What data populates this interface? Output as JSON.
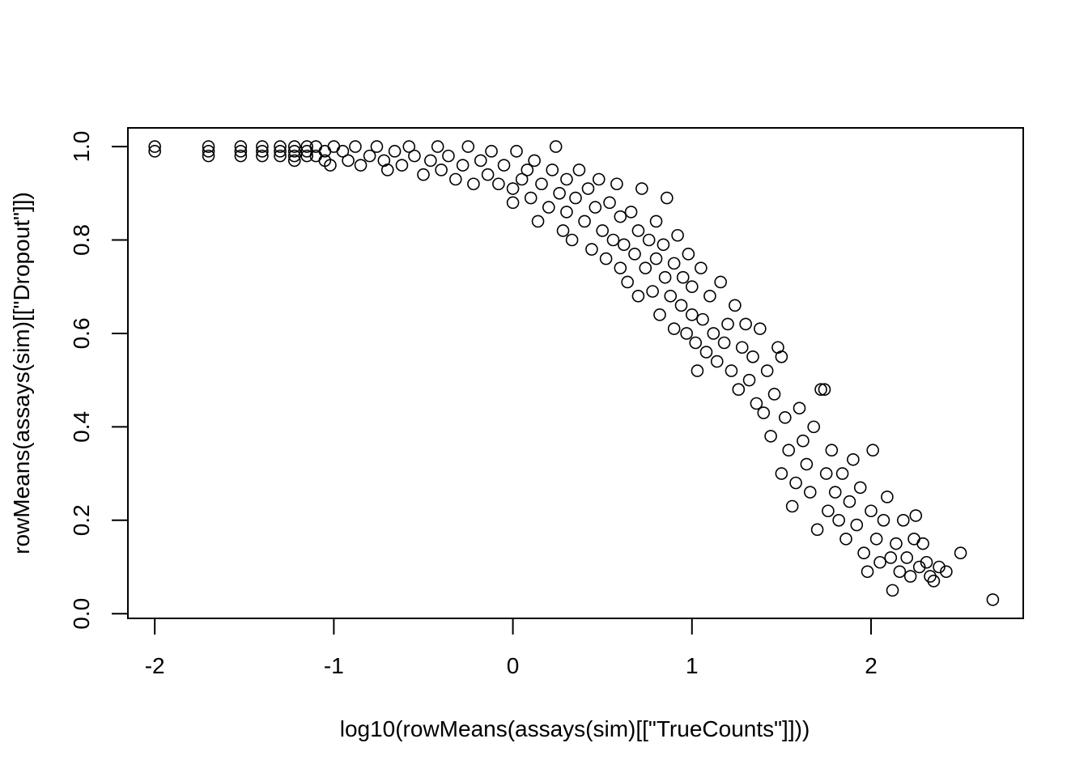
{
  "chart_data": {
    "type": "scatter",
    "title": "",
    "xlabel": "log10(rowMeans(assays(sim)[[\"TrueCounts\"]]))",
    "ylabel": "rowMeans(assays(sim)[[\"Dropout\"]])",
    "xlim": [
      -2.15,
      2.85
    ],
    "ylim": [
      -0.01,
      1.04
    ],
    "x_ticks": [
      -2,
      -1,
      0,
      1,
      2
    ],
    "x_tick_labels": [
      "-2",
      "-1",
      "0",
      "1",
      "2"
    ],
    "y_ticks": [
      0.0,
      0.2,
      0.4,
      0.6,
      0.8,
      1.0
    ],
    "y_tick_labels": [
      "0.0",
      "0.2",
      "0.4",
      "0.6",
      "0.8",
      "1.0"
    ],
    "grid": false,
    "marker": "open-circle",
    "marker_color": "#000000",
    "points": [
      [
        -2.0,
        1.0
      ],
      [
        -2.0,
        0.99
      ],
      [
        -1.7,
        1.0
      ],
      [
        -1.7,
        0.99
      ],
      [
        -1.7,
        0.98
      ],
      [
        -1.52,
        1.0
      ],
      [
        -1.52,
        0.99
      ],
      [
        -1.52,
        0.98
      ],
      [
        -1.4,
        1.0
      ],
      [
        -1.4,
        0.99
      ],
      [
        -1.4,
        0.98
      ],
      [
        -1.3,
        1.0
      ],
      [
        -1.3,
        0.99
      ],
      [
        -1.3,
        0.98
      ],
      [
        -1.22,
        1.0
      ],
      [
        -1.22,
        0.99
      ],
      [
        -1.22,
        0.98
      ],
      [
        -1.22,
        0.97
      ],
      [
        -1.15,
        1.0
      ],
      [
        -1.15,
        0.99
      ],
      [
        -1.15,
        0.98
      ],
      [
        -1.1,
        1.0
      ],
      [
        -1.1,
        0.98
      ],
      [
        -1.05,
        0.99
      ],
      [
        -1.05,
        0.97
      ],
      [
        -1.02,
        0.96
      ],
      [
        -1.0,
        1.0
      ],
      [
        -0.95,
        0.99
      ],
      [
        -0.92,
        0.97
      ],
      [
        -0.88,
        1.0
      ],
      [
        -0.85,
        0.96
      ],
      [
        -0.8,
        0.98
      ],
      [
        -0.76,
        1.0
      ],
      [
        -0.72,
        0.97
      ],
      [
        -0.7,
        0.95
      ],
      [
        -0.66,
        0.99
      ],
      [
        -0.62,
        0.96
      ],
      [
        -0.58,
        1.0
      ],
      [
        -0.55,
        0.98
      ],
      [
        -0.5,
        0.94
      ],
      [
        -0.46,
        0.97
      ],
      [
        -0.42,
        1.0
      ],
      [
        -0.4,
        0.95
      ],
      [
        -0.36,
        0.98
      ],
      [
        -0.32,
        0.93
      ],
      [
        -0.28,
        0.96
      ],
      [
        -0.25,
        1.0
      ],
      [
        -0.22,
        0.92
      ],
      [
        -0.18,
        0.97
      ],
      [
        -0.14,
        0.94
      ],
      [
        -0.12,
        0.99
      ],
      [
        -0.08,
        0.92
      ],
      [
        -0.05,
        0.96
      ],
      [
        0.0,
        0.91
      ],
      [
        0.0,
        0.88
      ],
      [
        0.02,
        0.99
      ],
      [
        0.05,
        0.93
      ],
      [
        0.08,
        0.95
      ],
      [
        0.1,
        0.89
      ],
      [
        0.12,
        0.97
      ],
      [
        0.14,
        0.84
      ],
      [
        0.16,
        0.92
      ],
      [
        0.2,
        0.87
      ],
      [
        0.22,
        0.95
      ],
      [
        0.24,
        1.0
      ],
      [
        0.26,
        0.9
      ],
      [
        0.28,
        0.82
      ],
      [
        0.3,
        0.93
      ],
      [
        0.3,
        0.86
      ],
      [
        0.33,
        0.8
      ],
      [
        0.35,
        0.89
      ],
      [
        0.37,
        0.95
      ],
      [
        0.4,
        0.84
      ],
      [
        0.42,
        0.91
      ],
      [
        0.44,
        0.78
      ],
      [
        0.46,
        0.87
      ],
      [
        0.48,
        0.93
      ],
      [
        0.5,
        0.82
      ],
      [
        0.52,
        0.76
      ],
      [
        0.54,
        0.88
      ],
      [
        0.56,
        0.8
      ],
      [
        0.58,
        0.92
      ],
      [
        0.6,
        0.74
      ],
      [
        0.6,
        0.85
      ],
      [
        0.62,
        0.79
      ],
      [
        0.64,
        0.71
      ],
      [
        0.66,
        0.86
      ],
      [
        0.68,
        0.77
      ],
      [
        0.7,
        0.82
      ],
      [
        0.7,
        0.68
      ],
      [
        0.72,
        0.91
      ],
      [
        0.74,
        0.74
      ],
      [
        0.76,
        0.8
      ],
      [
        0.78,
        0.69
      ],
      [
        0.8,
        0.84
      ],
      [
        0.8,
        0.76
      ],
      [
        0.82,
        0.64
      ],
      [
        0.84,
        0.79
      ],
      [
        0.85,
        0.72
      ],
      [
        0.86,
        0.89
      ],
      [
        0.88,
        0.68
      ],
      [
        0.9,
        0.75
      ],
      [
        0.9,
        0.61
      ],
      [
        0.92,
        0.81
      ],
      [
        0.94,
        0.66
      ],
      [
        0.95,
        0.72
      ],
      [
        0.97,
        0.6
      ],
      [
        0.98,
        0.77
      ],
      [
        1.0,
        0.64
      ],
      [
        1.0,
        0.7
      ],
      [
        1.02,
        0.58
      ],
      [
        1.03,
        0.52
      ],
      [
        1.05,
        0.74
      ],
      [
        1.06,
        0.63
      ],
      [
        1.08,
        0.56
      ],
      [
        1.1,
        0.68
      ],
      [
        1.12,
        0.6
      ],
      [
        1.14,
        0.54
      ],
      [
        1.16,
        0.71
      ],
      [
        1.18,
        0.58
      ],
      [
        1.2,
        0.62
      ],
      [
        1.22,
        0.52
      ],
      [
        1.24,
        0.66
      ],
      [
        1.26,
        0.48
      ],
      [
        1.28,
        0.57
      ],
      [
        1.3,
        0.62
      ],
      [
        1.32,
        0.5
      ],
      [
        1.34,
        0.55
      ],
      [
        1.36,
        0.45
      ],
      [
        1.38,
        0.61
      ],
      [
        1.4,
        0.43
      ],
      [
        1.42,
        0.52
      ],
      [
        1.44,
        0.38
      ],
      [
        1.46,
        0.47
      ],
      [
        1.48,
        0.57
      ],
      [
        1.5,
        0.55
      ],
      [
        1.5,
        0.3
      ],
      [
        1.52,
        0.42
      ],
      [
        1.54,
        0.35
      ],
      [
        1.56,
        0.23
      ],
      [
        1.58,
        0.28
      ],
      [
        1.6,
        0.44
      ],
      [
        1.62,
        0.37
      ],
      [
        1.64,
        0.32
      ],
      [
        1.66,
        0.26
      ],
      [
        1.68,
        0.4
      ],
      [
        1.7,
        0.18
      ],
      [
        1.72,
        0.48
      ],
      [
        1.74,
        0.48
      ],
      [
        1.75,
        0.3
      ],
      [
        1.76,
        0.22
      ],
      [
        1.78,
        0.35
      ],
      [
        1.8,
        0.26
      ],
      [
        1.82,
        0.2
      ],
      [
        1.84,
        0.3
      ],
      [
        1.86,
        0.16
      ],
      [
        1.88,
        0.24
      ],
      [
        1.9,
        0.33
      ],
      [
        1.92,
        0.19
      ],
      [
        1.94,
        0.27
      ],
      [
        1.96,
        0.13
      ],
      [
        1.98,
        0.09
      ],
      [
        2.0,
        0.22
      ],
      [
        2.01,
        0.35
      ],
      [
        2.03,
        0.16
      ],
      [
        2.05,
        0.11
      ],
      [
        2.07,
        0.2
      ],
      [
        2.09,
        0.25
      ],
      [
        2.11,
        0.12
      ],
      [
        2.12,
        0.05
      ],
      [
        2.14,
        0.15
      ],
      [
        2.16,
        0.09
      ],
      [
        2.18,
        0.2
      ],
      [
        2.2,
        0.12
      ],
      [
        2.22,
        0.08
      ],
      [
        2.24,
        0.16
      ],
      [
        2.25,
        0.21
      ],
      [
        2.27,
        0.1
      ],
      [
        2.29,
        0.15
      ],
      [
        2.31,
        0.11
      ],
      [
        2.33,
        0.08
      ],
      [
        2.35,
        0.07
      ],
      [
        2.38,
        0.1
      ],
      [
        2.42,
        0.09
      ],
      [
        2.5,
        0.13
      ],
      [
        2.68,
        0.03
      ]
    ]
  }
}
